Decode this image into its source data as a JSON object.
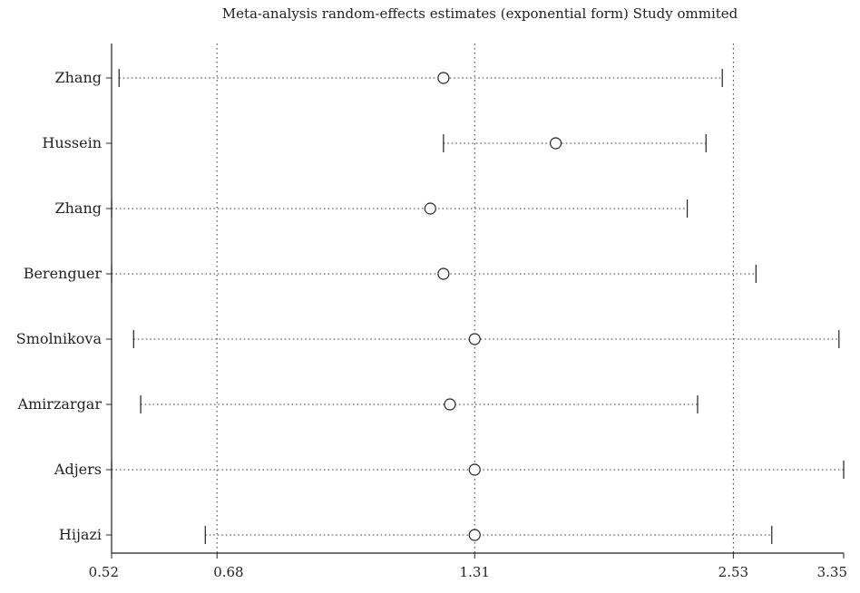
{
  "chart_data": {
    "type": "scatter",
    "title": "Meta-analysis random-effects estimates (exponential form) Study ommited",
    "xlabel": "",
    "ylabel": "",
    "x_scale": "log",
    "xlim": [
      0.52,
      3.35
    ],
    "xticks": [
      "0.52",
      "0.68",
      "1.31",
      "2.53",
      "3.35"
    ],
    "reference_lines": [
      0.68,
      1.31,
      2.53
    ],
    "studies": [
      {
        "label": "Zhang",
        "estimate": 1.21,
        "lower": 0.53,
        "upper": 2.46
      },
      {
        "label": "Hussein",
        "estimate": 1.61,
        "lower": 1.21,
        "upper": 2.36
      },
      {
        "label": "Zhang",
        "estimate": 1.17,
        "lower": 0.52,
        "upper": 2.25
      },
      {
        "label": "Berenguer",
        "estimate": 1.21,
        "lower": 0.52,
        "upper": 2.68
      },
      {
        "label": "Smolnikova",
        "estimate": 1.31,
        "lower": 0.55,
        "upper": 3.31
      },
      {
        "label": "Amirzargar",
        "estimate": 1.23,
        "lower": 0.56,
        "upper": 2.31
      },
      {
        "label": "Adjers",
        "estimate": 1.31,
        "lower": 0.52,
        "upper": 3.35
      },
      {
        "label": "Hijazi",
        "estimate": 1.31,
        "lower": 0.66,
        "upper": 2.79
      }
    ]
  }
}
